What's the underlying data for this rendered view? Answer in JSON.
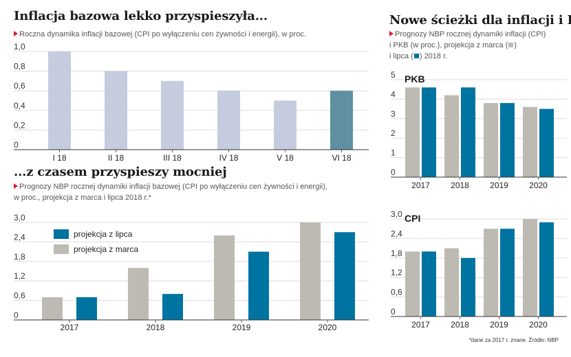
{
  "left_top": {
    "title": "Inflacja bazowa lekko przyspieszyła...",
    "subtitle": "Roczna dynamika inflacji bazowej (CPI po wyłączeniu cen żywności i energii), w proc."
  },
  "left_bottom": {
    "title": "...z czasem przyspieszy mocniej",
    "subtitle_line1": "Prognozy NBP rocznej dynamiki inflacji bazowej (CPI po wyłączeniu cen żywności i energii),",
    "subtitle_line2": "w proc., projekcja z marca i lipca 2018 r.*"
  },
  "right": {
    "title": "Nowe ścieżki dla inflacji i PKB",
    "subtitle_line1": "Prognozy NBP rocznej dynamiki inflacji (CPI)",
    "subtitle_line2": "i PKB (w proc.), projekcja z marca (",
    "subtitle_line2b": ")",
    "subtitle_line3": "i lipca (",
    "subtitle_line3b": ") 2018 r."
  },
  "footnote": "*dane za 2017 r. znane. Źródło: NBP",
  "colors": {
    "light_bar": "#c5ccdd",
    "highlight_bar": "#5f8fa0",
    "march": "#bdbab3",
    "july": "#0074a0",
    "grid": "#dcdcdc",
    "accent": "#d9232e"
  },
  "chart_data": [
    {
      "type": "bar",
      "categories": [
        "I 18",
        "II 18",
        "III 18",
        "IV 18",
        "V 18",
        "VI 18"
      ],
      "values": [
        1.0,
        0.8,
        0.7,
        0.6,
        0.5,
        0.6
      ],
      "yticks": [
        "1,0",
        "0,8",
        "0,6",
        "0,4",
        "0,2",
        "0"
      ],
      "ylim": [
        0,
        1.0
      ],
      "highlight_index": 5
    },
    {
      "type": "bar",
      "categories": [
        "2017",
        "2018",
        "2019",
        "2020"
      ],
      "series": [
        {
          "name": "projekcja z lipca",
          "values": [
            0.7,
            0.8,
            2.1,
            2.7
          ]
        },
        {
          "name": "projekcja z marca",
          "values": [
            0.7,
            1.6,
            2.6,
            3.0
          ]
        }
      ],
      "yticks": [
        "3,0",
        "2,4",
        "1,8",
        "1,2",
        "0,6",
        "0"
      ],
      "ylim": [
        0,
        3.0
      ],
      "legend_position": "top-left"
    },
    {
      "type": "bar",
      "label": "PKB",
      "categories": [
        "2017",
        "2018",
        "2019",
        "2020"
      ],
      "series": [
        {
          "values": [
            4.6,
            4.2,
            3.8,
            3.6
          ]
        },
        {
          "values": [
            4.6,
            4.6,
            3.8,
            3.5
          ]
        }
      ],
      "yticks": [
        "5",
        "4",
        "3",
        "2",
        "1",
        "0"
      ],
      "ylim": [
        0,
        5
      ]
    },
    {
      "type": "bar",
      "label": "CPI",
      "categories": [
        "2017",
        "2018",
        "2019",
        "2020"
      ],
      "series": [
        {
          "values": [
            2.0,
            2.1,
            2.7,
            3.0
          ]
        },
        {
          "values": [
            2.0,
            1.8,
            2.7,
            2.9
          ]
        }
      ],
      "yticks": [
        "3,0",
        "2,4",
        "1,8",
        "1,2",
        "0,6",
        "0"
      ],
      "ylim": [
        0,
        3.0
      ]
    }
  ]
}
